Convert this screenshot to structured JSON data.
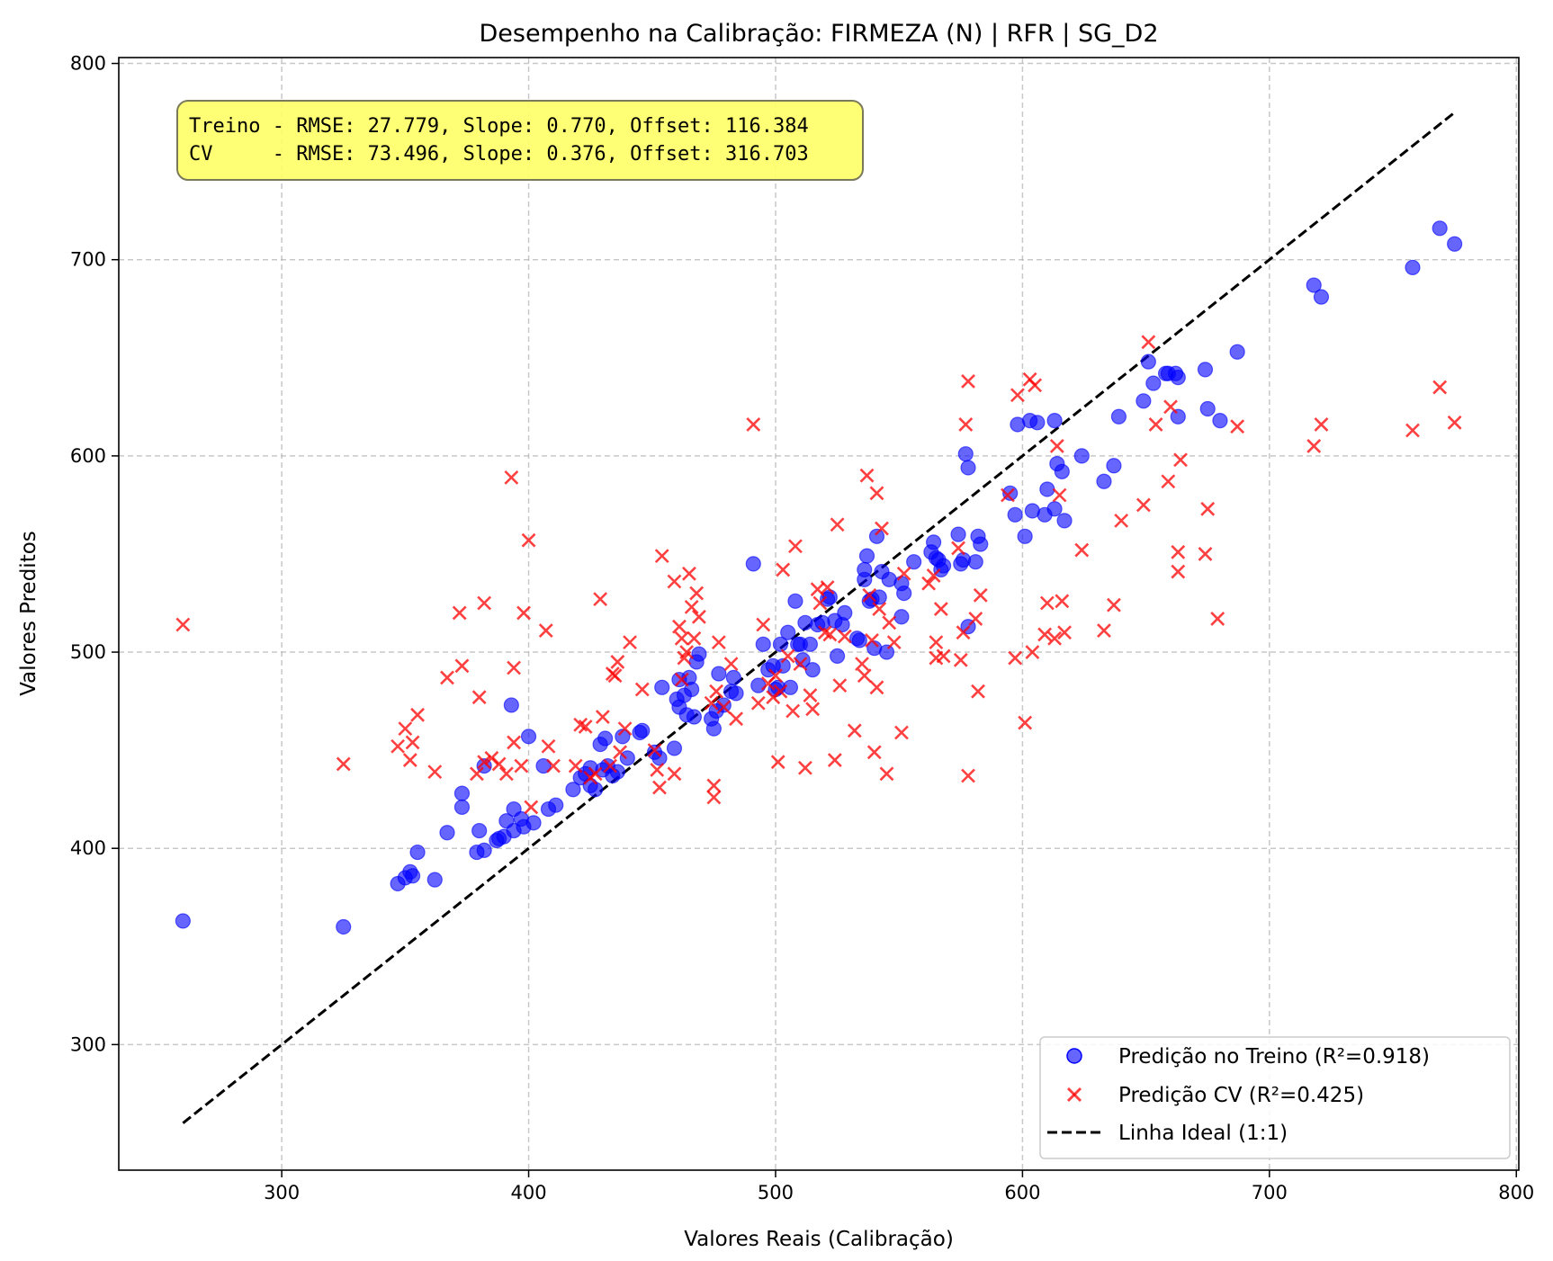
{
  "chart_data": {
    "type": "scatter",
    "title": "Desempenho na Calibração: FIRMEZA (N) | RFR | SG_D2",
    "xlabel": "Valores Reais (Calibração)",
    "ylabel": "Valores Preditos",
    "xlim": [
      234,
      801
    ],
    "ylim": [
      236,
      803
    ],
    "xticks": [
      300,
      400,
      500,
      600,
      700,
      800
    ],
    "yticks": [
      300,
      400,
      500,
      600,
      700,
      800
    ],
    "grid": true,
    "legend_position": "bottom-right",
    "annotation": {
      "lines": [
        "Treino - RMSE: 27.779, Slope: 0.770, Offset: 116.384",
        "CV     - RMSE: 73.496, Slope: 0.376, Offset: 316.703"
      ],
      "background": "#ffff66"
    },
    "series": [
      {
        "name": "Predição no Treino (R²=0.918)",
        "marker": "circle",
        "color": "#0000ff",
        "points": [
          [
            260,
            363
          ],
          [
            325,
            360
          ],
          [
            347,
            382
          ],
          [
            350,
            385
          ],
          [
            352,
            388
          ],
          [
            353,
            386
          ],
          [
            355,
            398
          ],
          [
            362,
            384
          ],
          [
            367,
            408
          ],
          [
            373,
            421
          ],
          [
            373,
            428
          ],
          [
            379,
            398
          ],
          [
            380,
            409
          ],
          [
            382,
            399
          ],
          [
            382,
            442
          ],
          [
            387,
            404
          ],
          [
            388,
            405
          ],
          [
            390,
            406
          ],
          [
            391,
            414
          ],
          [
            393,
            473
          ],
          [
            394,
            420
          ],
          [
            394,
            409
          ],
          [
            397,
            415
          ],
          [
            398,
            411
          ],
          [
            400,
            457
          ],
          [
            402,
            413
          ],
          [
            406,
            442
          ],
          [
            408,
            420
          ],
          [
            411,
            422
          ],
          [
            418,
            430
          ],
          [
            421,
            436
          ],
          [
            423,
            438
          ],
          [
            425,
            432
          ],
          [
            425,
            441
          ],
          [
            427,
            430
          ],
          [
            429,
            453
          ],
          [
            430,
            440
          ],
          [
            431,
            456
          ],
          [
            432,
            442
          ],
          [
            434,
            437
          ],
          [
            436,
            439
          ],
          [
            438,
            457
          ],
          [
            440,
            446
          ],
          [
            445,
            459
          ],
          [
            446,
            460
          ],
          [
            451,
            449
          ],
          [
            453,
            446
          ],
          [
            454,
            482
          ],
          [
            459,
            451
          ],
          [
            460,
            476
          ],
          [
            461,
            486
          ],
          [
            461,
            472
          ],
          [
            463,
            478
          ],
          [
            464,
            468
          ],
          [
            465,
            487
          ],
          [
            466,
            481
          ],
          [
            467,
            467
          ],
          [
            468,
            495
          ],
          [
            469,
            499
          ],
          [
            474,
            466
          ],
          [
            475,
            461
          ],
          [
            476,
            470
          ],
          [
            477,
            489
          ],
          [
            479,
            473
          ],
          [
            482,
            480
          ],
          [
            483,
            487
          ],
          [
            484,
            479
          ],
          [
            491,
            545
          ],
          [
            493,
            483
          ],
          [
            495,
            504
          ],
          [
            497,
            491
          ],
          [
            499,
            493
          ],
          [
            500,
            481
          ],
          [
            501,
            482
          ],
          [
            502,
            504
          ],
          [
            503,
            493
          ],
          [
            505,
            510
          ],
          [
            506,
            482
          ],
          [
            508,
            526
          ],
          [
            509,
            504
          ],
          [
            510,
            504
          ],
          [
            511,
            496
          ],
          [
            512,
            515
          ],
          [
            514,
            504
          ],
          [
            515,
            491
          ],
          [
            517,
            514
          ],
          [
            519,
            515
          ],
          [
            521,
            527
          ],
          [
            522,
            528
          ],
          [
            524,
            516
          ],
          [
            525,
            498
          ],
          [
            527,
            514
          ],
          [
            528,
            520
          ],
          [
            533,
            507
          ],
          [
            534,
            506
          ],
          [
            536,
            537
          ],
          [
            536,
            542
          ],
          [
            537,
            549
          ],
          [
            538,
            526
          ],
          [
            539,
            527
          ],
          [
            540,
            502
          ],
          [
            541,
            559
          ],
          [
            542,
            528
          ],
          [
            543,
            541
          ],
          [
            545,
            500
          ],
          [
            546,
            537
          ],
          [
            551,
            535
          ],
          [
            551,
            518
          ],
          [
            552,
            530
          ],
          [
            556,
            546
          ],
          [
            563,
            551
          ],
          [
            564,
            556
          ],
          [
            565,
            548
          ],
          [
            566,
            547
          ],
          [
            567,
            542
          ],
          [
            568,
            544
          ],
          [
            574,
            560
          ],
          [
            575,
            545
          ],
          [
            576,
            547
          ],
          [
            577,
            601
          ],
          [
            578,
            513
          ],
          [
            578,
            594
          ],
          [
            581,
            546
          ],
          [
            582,
            559
          ],
          [
            583,
            555
          ],
          [
            595,
            581
          ],
          [
            597,
            570
          ],
          [
            598,
            616
          ],
          [
            601,
            559
          ],
          [
            603,
            618
          ],
          [
            604,
            572
          ],
          [
            606,
            617
          ],
          [
            609,
            570
          ],
          [
            610,
            583
          ],
          [
            613,
            618
          ],
          [
            613,
            573
          ],
          [
            614,
            596
          ],
          [
            616,
            592
          ],
          [
            617,
            567
          ],
          [
            624,
            600
          ],
          [
            633,
            587
          ],
          [
            637,
            595
          ],
          [
            639,
            620
          ],
          [
            649,
            628
          ],
          [
            651,
            648
          ],
          [
            653,
            637
          ],
          [
            658,
            642
          ],
          [
            659,
            642
          ],
          [
            662,
            642
          ],
          [
            663,
            620
          ],
          [
            663,
            640
          ],
          [
            674,
            644
          ],
          [
            675,
            624
          ],
          [
            680,
            618
          ],
          [
            687,
            653
          ],
          [
            718,
            687
          ],
          [
            721,
            681
          ],
          [
            758,
            696
          ],
          [
            769,
            716
          ],
          [
            775,
            708
          ]
        ]
      },
      {
        "name": "Predição CV (R²=0.425)",
        "marker": "x",
        "color": "#ff0000",
        "points": [
          [
            260,
            514
          ],
          [
            325,
            443
          ],
          [
            347,
            452
          ],
          [
            350,
            461
          ],
          [
            352,
            445
          ],
          [
            353,
            454
          ],
          [
            355,
            468
          ],
          [
            362,
            439
          ],
          [
            367,
            487
          ],
          [
            372,
            520
          ],
          [
            373,
            493
          ],
          [
            379,
            438
          ],
          [
            380,
            477
          ],
          [
            382,
            525
          ],
          [
            382,
            444
          ],
          [
            385,
            446
          ],
          [
            388,
            443
          ],
          [
            391,
            438
          ],
          [
            393,
            589
          ],
          [
            394,
            492
          ],
          [
            394,
            454
          ],
          [
            397,
            442
          ],
          [
            398,
            520
          ],
          [
            400,
            557
          ],
          [
            401,
            421
          ],
          [
            407,
            511
          ],
          [
            408,
            452
          ],
          [
            410,
            442
          ],
          [
            419,
            442
          ],
          [
            421,
            463
          ],
          [
            423,
            462
          ],
          [
            425,
            436
          ],
          [
            427,
            438
          ],
          [
            429,
            527
          ],
          [
            430,
            467
          ],
          [
            433,
            442
          ],
          [
            434,
            489
          ],
          [
            435,
            488
          ],
          [
            436,
            495
          ],
          [
            437,
            449
          ],
          [
            439,
            461
          ],
          [
            441,
            505
          ],
          [
            446,
            481
          ],
          [
            451,
            450
          ],
          [
            452,
            440
          ],
          [
            453,
            431
          ],
          [
            454,
            549
          ],
          [
            459,
            438
          ],
          [
            459,
            536
          ],
          [
            461,
            513
          ],
          [
            462,
            507
          ],
          [
            462,
            486
          ],
          [
            463,
            497
          ],
          [
            464,
            500
          ],
          [
            465,
            540
          ],
          [
            466,
            523
          ],
          [
            467,
            507
          ],
          [
            468,
            530
          ],
          [
            469,
            518
          ],
          [
            474,
            474
          ],
          [
            475,
            426
          ],
          [
            475,
            432
          ],
          [
            476,
            480
          ],
          [
            477,
            505
          ],
          [
            479,
            472
          ],
          [
            482,
            494
          ],
          [
            484,
            466
          ],
          [
            491,
            616
          ],
          [
            493,
            474
          ],
          [
            495,
            514
          ],
          [
            497,
            484
          ],
          [
            499,
            477
          ],
          [
            500,
            488
          ],
          [
            501,
            444
          ],
          [
            502,
            480
          ],
          [
            503,
            542
          ],
          [
            505,
            498
          ],
          [
            507,
            470
          ],
          [
            508,
            554
          ],
          [
            510,
            494
          ],
          [
            512,
            441
          ],
          [
            514,
            478
          ],
          [
            515,
            471
          ],
          [
            517,
            532
          ],
          [
            518,
            525
          ],
          [
            520,
            510
          ],
          [
            521,
            533
          ],
          [
            522,
            509
          ],
          [
            524,
            445
          ],
          [
            525,
            565
          ],
          [
            526,
            483
          ],
          [
            528,
            508
          ],
          [
            532,
            460
          ],
          [
            535,
            494
          ],
          [
            536,
            488
          ],
          [
            537,
            590
          ],
          [
            538,
            529
          ],
          [
            539,
            506
          ],
          [
            540,
            449
          ],
          [
            541,
            581
          ],
          [
            541,
            482
          ],
          [
            542,
            522
          ],
          [
            543,
            563
          ],
          [
            545,
            438
          ],
          [
            546,
            515
          ],
          [
            548,
            505
          ],
          [
            551,
            459
          ],
          [
            552,
            540
          ],
          [
            562,
            535
          ],
          [
            564,
            539
          ],
          [
            565,
            497
          ],
          [
            565,
            505
          ],
          [
            567,
            522
          ],
          [
            568,
            498
          ],
          [
            574,
            553
          ],
          [
            575,
            496
          ],
          [
            576,
            510
          ],
          [
            577,
            616
          ],
          [
            578,
            638
          ],
          [
            578,
            437
          ],
          [
            581,
            517
          ],
          [
            582,
            480
          ],
          [
            583,
            529
          ],
          [
            594,
            580
          ],
          [
            597,
            497
          ],
          [
            598,
            631
          ],
          [
            601,
            464
          ],
          [
            603,
            639
          ],
          [
            604,
            500
          ],
          [
            605,
            636
          ],
          [
            609,
            509
          ],
          [
            610,
            525
          ],
          [
            613,
            507
          ],
          [
            614,
            605
          ],
          [
            615,
            580
          ],
          [
            616,
            526
          ],
          [
            617,
            510
          ],
          [
            624,
            552
          ],
          [
            633,
            511
          ],
          [
            637,
            524
          ],
          [
            640,
            567
          ],
          [
            649,
            575
          ],
          [
            651,
            658
          ],
          [
            654,
            616
          ],
          [
            659,
            587
          ],
          [
            660,
            625
          ],
          [
            663,
            541
          ],
          [
            663,
            551
          ],
          [
            664,
            598
          ],
          [
            674,
            550
          ],
          [
            675,
            573
          ],
          [
            679,
            517
          ],
          [
            687,
            615
          ],
          [
            718,
            605
          ],
          [
            721,
            616
          ],
          [
            758,
            613
          ],
          [
            769,
            635
          ],
          [
            775,
            617
          ]
        ]
      },
      {
        "name": "Linha Ideal (1:1)",
        "type": "line",
        "style": "dashed",
        "color": "#000000",
        "x": [
          260,
          775
        ],
        "y": [
          260,
          775
        ]
      }
    ]
  }
}
